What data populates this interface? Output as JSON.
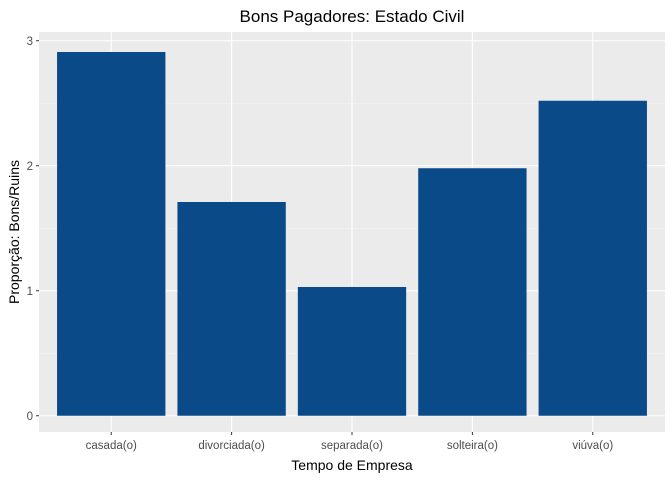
{
  "chart_data": {
    "type": "bar",
    "title": "Bons Pagadores: Estado Civil",
    "xlabel": "Tempo de Empresa",
    "ylabel": "Proporção: Bons/Ruins",
    "categories": [
      "casada(o)",
      "divorciada(o)",
      "separada(o)",
      "solteira(o)",
      "viúva(o)"
    ],
    "values": [
      2.91,
      1.71,
      1.03,
      1.98,
      2.52
    ],
    "ylim": [
      -0.13,
      3.07
    ],
    "yticks": [
      0,
      1,
      2,
      3
    ],
    "yminor": [
      0.5,
      1.5,
      2.5
    ],
    "grid": true,
    "legend": "none",
    "colors": {
      "bar": "#0b4a88",
      "panel": "#ebebeb",
      "grid_major": "#ffffff",
      "grid_minor": "#f5f5f5",
      "tick_text": "#4d4d4d",
      "tick_mark": "#333333"
    }
  }
}
